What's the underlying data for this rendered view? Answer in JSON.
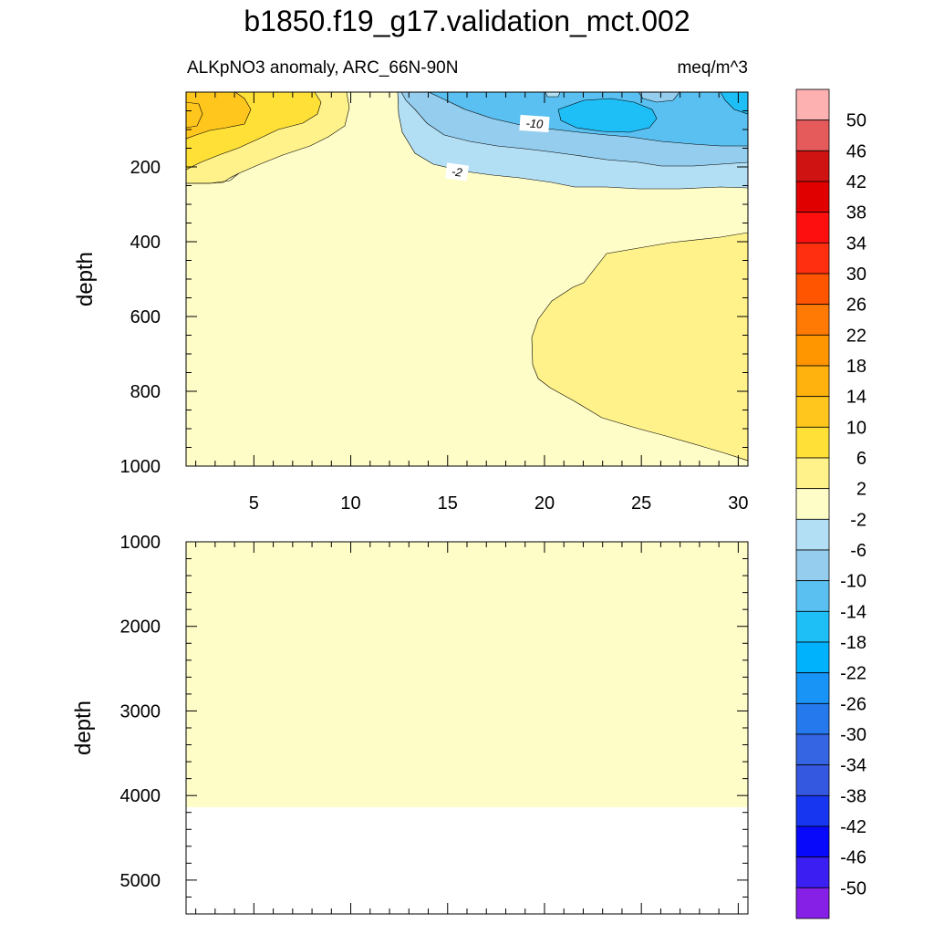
{
  "chart_data": [
    {
      "type": "heatmap",
      "panel": "upper",
      "title": "b1850.f19_g17.validation_mct.002",
      "subtitle_left": "ALKpNO3 anomaly, ARC_66N-90N",
      "subtitle_right": "meq/m^3",
      "xlabel": "",
      "ylabel": "depth",
      "xlim": [
        1.5,
        30.5
      ],
      "ylim": [
        1000,
        0
      ],
      "x_ticks": [
        5,
        10,
        15,
        20,
        25,
        30
      ],
      "y_ticks": [
        200,
        400,
        600,
        800,
        1000
      ],
      "contour_labels": [
        {
          "text": "-10",
          "x": 18.5,
          "depth": 85
        },
        {
          "text": "-2",
          "x": 15.5,
          "depth": 210
        }
      ],
      "regions": [
        {
          "range": "-2 to 2",
          "location": "background, most of depth 0-1000"
        },
        {
          "range": "2 to 6",
          "location": "x 19-30.5, depth 380-980 (subsurface lens)"
        },
        {
          "range": "2 to 10",
          "location": "x 1.5-8.5, depth 0-250 (surface, west)"
        },
        {
          "range": "10 to 14",
          "location": "x 1.5-3, depth 20-90"
        },
        {
          "range": "-2 to -18",
          "location": "x 12-30.5, depth 0-250 (surface, east)"
        }
      ]
    },
    {
      "type": "heatmap",
      "panel": "lower",
      "ylabel": "depth",
      "ylim": [
        5400,
        1000
      ],
      "y_ticks": [
        1000,
        2000,
        3000,
        4000,
        5000
      ],
      "regions": [
        {
          "range": "-2 to 2",
          "location": "depth 1000-4120, all x"
        }
      ],
      "missing_below_depth": 4120
    }
  ],
  "colorbar": {
    "labels": [
      "50",
      "46",
      "42",
      "38",
      "34",
      "30",
      "26",
      "22",
      "18",
      "14",
      "10",
      "6",
      "2",
      "-2",
      "-6",
      "-10",
      "-14",
      "-18",
      "-22",
      "-26",
      "-30",
      "-34",
      "-38",
      "-42",
      "-46",
      "-50"
    ],
    "colors": [
      "#fdb1b1",
      "#e55a5a",
      "#cf1313",
      "#e10000",
      "#fd0f0f",
      "#ff2f0f",
      "#ff5400",
      "#ff7a05",
      "#ff9600",
      "#ffb10e",
      "#ffc71e",
      "#ffe036",
      "#fff28a",
      "#fffdc7",
      "#b3dff4",
      "#94cdee",
      "#59c0f1",
      "#1ebff7",
      "#00b1fc",
      "#1794f5",
      "#2679ec",
      "#3565e2",
      "#3558e0",
      "#1736f0",
      "#0808fb",
      "#3b1ef1",
      "#8620e7"
    ]
  },
  "field_colors": {
    "c_m2_p2": "#fffdc7",
    "c_p2_p6": "#fff28a",
    "c_p6_p10": "#ffe036",
    "c_p10_p14": "#ffc71e",
    "c_m6_m2": "#b3dff4",
    "c_m10_m6": "#94cdee",
    "c_m14_m10": "#59c0f1",
    "c_m18_m14": "#1ebff7"
  }
}
